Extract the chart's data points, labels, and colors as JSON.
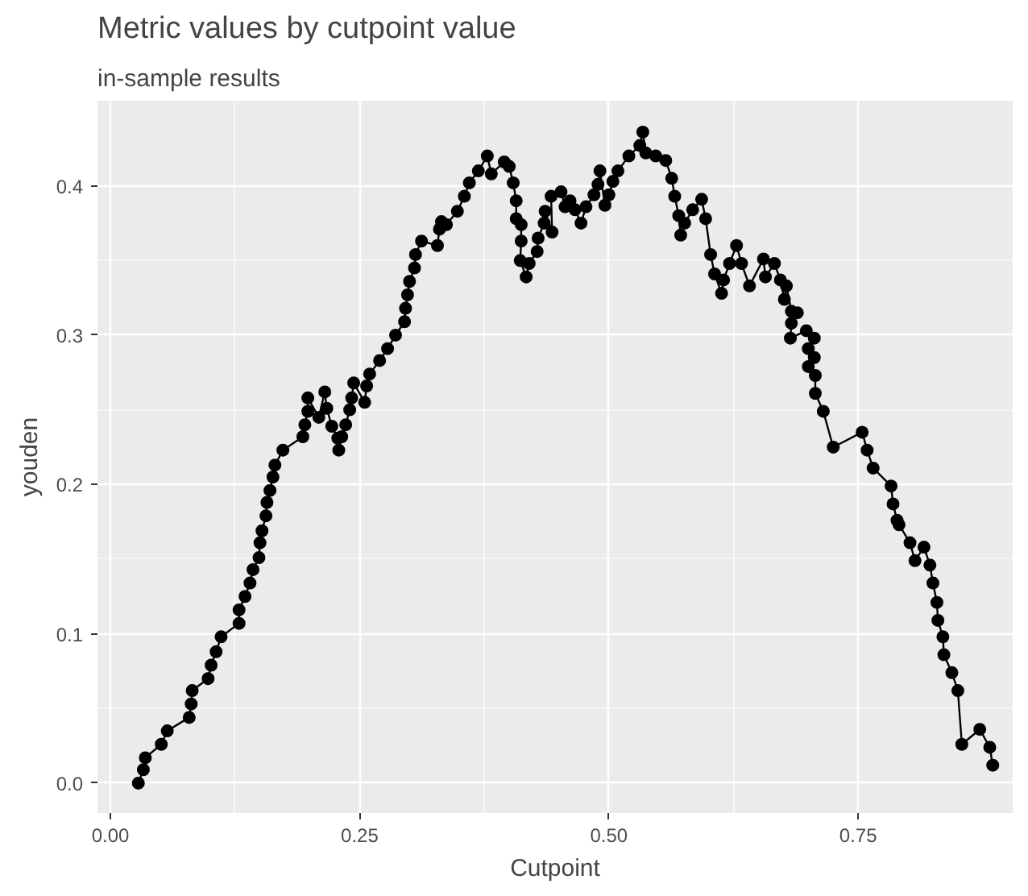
{
  "chart_data": {
    "type": "line",
    "title": "Metric values by cutpoint value",
    "subtitle": "in-sample results",
    "xlabel": "Cutpoint",
    "ylabel": "youden",
    "marker": "circle",
    "line_style": "solid",
    "grid": true,
    "xlim": [
      -0.013,
      0.905
    ],
    "ylim": [
      -0.02,
      0.457
    ],
    "xticks": [
      {
        "value": 0,
        "label": "0.00"
      },
      {
        "value": 0.25,
        "label": "0.25"
      },
      {
        "value": 0.5,
        "label": "0.50"
      },
      {
        "value": 0.75,
        "label": "0.75"
      }
    ],
    "yticks": [
      {
        "value": 0,
        "label": "0.0"
      },
      0.1,
      0.2,
      0.3,
      0.4
    ],
    "series": [
      {
        "color": "#000000",
        "x": [
          0.028,
          0.033,
          0.035,
          0.051,
          0.057,
          0.079,
          0.081,
          0.082,
          0.098,
          0.101,
          0.106,
          0.111,
          0.129,
          0.129,
          0.135,
          0.14,
          0.143,
          0.149,
          0.15,
          0.152,
          0.156,
          0.157,
          0.16,
          0.163,
          0.165,
          0.173,
          0.193,
          0.195,
          0.198,
          0.198,
          0.209,
          0.215,
          0.217,
          0.222,
          0.228,
          0.229,
          0.232,
          0.236,
          0.24,
          0.242,
          0.244,
          0.255,
          0.257,
          0.26,
          0.27,
          0.278,
          0.286,
          0.295,
          0.296,
          0.298,
          0.3,
          0.305,
          0.306,
          0.312,
          0.328,
          0.33,
          0.332,
          0.337,
          0.348,
          0.355,
          0.36,
          0.369,
          0.378,
          0.382,
          0.395,
          0.4,
          0.404,
          0.407,
          0.407,
          0.412,
          0.412,
          0.411,
          0.417,
          0.42,
          0.428,
          0.429,
          0.435,
          0.436,
          0.443,
          0.442,
          0.452,
          0.456,
          0.461,
          0.466,
          0.472,
          0.477,
          0.485,
          0.489,
          0.491,
          0.496,
          0.5,
          0.504,
          0.509,
          0.52,
          0.531,
          0.534,
          0.537,
          0.547,
          0.557,
          0.563,
          0.566,
          0.57,
          0.572,
          0.576,
          0.584,
          0.593,
          0.597,
          0.602,
          0.606,
          0.613,
          0.615,
          0.621,
          0.628,
          0.633,
          0.641,
          0.655,
          0.657,
          0.666,
          0.672,
          0.676,
          0.678,
          0.683,
          0.689,
          0.683,
          0.682,
          0.698,
          0.706,
          0.7,
          0.706,
          0.7,
          0.707,
          0.707,
          0.715,
          0.725,
          0.754,
          0.759,
          0.765,
          0.783,
          0.785,
          0.789,
          0.791,
          0.802,
          0.807,
          0.816,
          0.822,
          0.825,
          0.829,
          0.83,
          0.835,
          0.836,
          0.844,
          0.85,
          0.854,
          0.872,
          0.882,
          0.885
        ],
        "values": [
          0.0,
          0.009,
          0.017,
          0.026,
          0.035,
          0.044,
          0.053,
          0.062,
          0.07,
          0.079,
          0.088,
          0.098,
          0.107,
          0.116,
          0.125,
          0.134,
          0.143,
          0.151,
          0.161,
          0.169,
          0.179,
          0.188,
          0.196,
          0.205,
          0.213,
          0.223,
          0.232,
          0.24,
          0.249,
          0.258,
          0.245,
          0.262,
          0.251,
          0.239,
          0.231,
          0.223,
          0.232,
          0.24,
          0.25,
          0.258,
          0.268,
          0.255,
          0.266,
          0.274,
          0.283,
          0.291,
          0.3,
          0.309,
          0.318,
          0.327,
          0.336,
          0.345,
          0.354,
          0.363,
          0.36,
          0.371,
          0.376,
          0.374,
          0.383,
          0.393,
          0.402,
          0.41,
          0.42,
          0.408,
          0.416,
          0.413,
          0.402,
          0.39,
          0.378,
          0.374,
          0.363,
          0.35,
          0.339,
          0.348,
          0.356,
          0.365,
          0.375,
          0.383,
          0.369,
          0.393,
          0.396,
          0.386,
          0.39,
          0.384,
          0.375,
          0.386,
          0.394,
          0.401,
          0.41,
          0.387,
          0.394,
          0.403,
          0.41,
          0.42,
          0.427,
          0.436,
          0.422,
          0.42,
          0.417,
          0.405,
          0.393,
          0.38,
          0.367,
          0.375,
          0.384,
          0.391,
          0.378,
          0.354,
          0.341,
          0.328,
          0.337,
          0.348,
          0.36,
          0.348,
          0.333,
          0.351,
          0.339,
          0.348,
          0.337,
          0.324,
          0.333,
          0.316,
          0.315,
          0.308,
          0.298,
          0.303,
          0.298,
          0.291,
          0.285,
          0.279,
          0.273,
          0.261,
          0.249,
          0.225,
          0.235,
          0.223,
          0.211,
          0.199,
          0.187,
          0.176,
          0.173,
          0.161,
          0.149,
          0.158,
          0.146,
          0.134,
          0.121,
          0.109,
          0.098,
          0.086,
          0.074,
          0.062,
          0.026,
          0.036,
          0.024,
          0.012
        ]
      }
    ]
  }
}
